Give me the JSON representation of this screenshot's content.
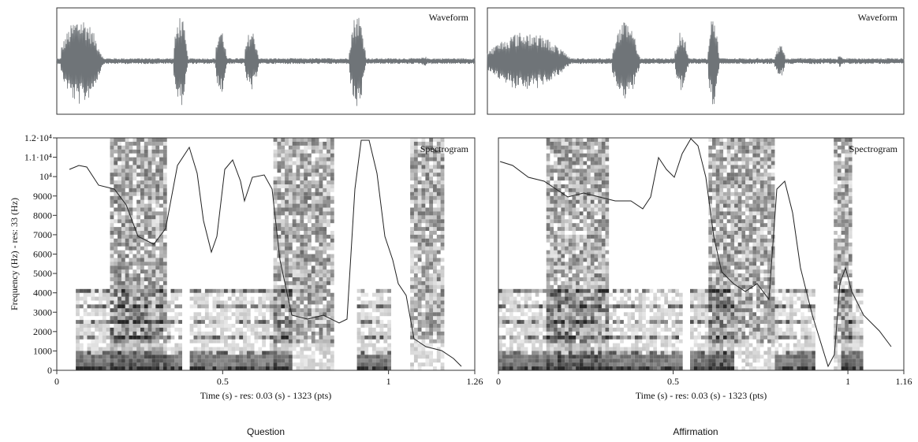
{
  "chart_data": [
    {
      "type": "spectrogram",
      "title": "Question",
      "waveform_label": "Waveform",
      "spectrogram_label": "Spectrogram",
      "xlabel": "Time (s) - res: 0.03 (s) - 1323 (pts)",
      "ylabel": "Frequency (Hz) - res: 33 (Hz)",
      "xlim": [
        0,
        1.26
      ],
      "xticks": [
        0,
        0.5,
        1,
        1.26
      ],
      "ylim": [
        0,
        12000
      ],
      "yticks": [
        0,
        1000,
        2000,
        3000,
        4000,
        5000,
        6000,
        7000,
        8000,
        9000,
        {
          "value": 10000,
          "label": "10⁴"
        },
        {
          "value": 11000,
          "label": "1.1·10⁴"
        },
        {
          "value": 12000,
          "label": "1.2·10⁴"
        }
      ]
    },
    {
      "type": "spectrogram",
      "title": "Affirmation",
      "waveform_label": "Waveform",
      "spectrogram_label": "Spectrogram",
      "xlabel": "Time (s) - res: 0.03 (s) - 1323 (pts)",
      "xlim": [
        0,
        1.16
      ],
      "xticks": [
        0,
        0.5,
        1,
        1.16
      ],
      "ylim": [
        0,
        12000
      ]
    }
  ]
}
